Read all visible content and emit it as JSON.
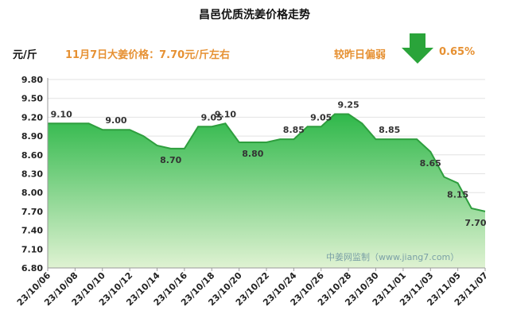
{
  "header": {
    "title": "昌邑优质洗姜价格走势",
    "unit": "元/斤",
    "price_text": "11月7日大姜价格：7.70元/斤左右",
    "change_text": "较昨日偏弱",
    "change_pct": "0.65%",
    "change_icon": "down-arrow-icon"
  },
  "watermark": "中姜网监制（www.jiang7.com）",
  "colors": {
    "line": "#2e9e3e",
    "fill_top": "#2fb84a",
    "fill_bottom": "#dff2d2",
    "accent": "#e69133",
    "arrow": "#2aa43a"
  },
  "chart_data": {
    "type": "area",
    "title": "昌邑优质洗姜价格走势",
    "ylabel": "元/斤",
    "ylim": [
      6.8,
      9.8
    ],
    "yticks": [
      "9.80",
      "9.50",
      "9.20",
      "8.90",
      "8.60",
      "8.30",
      "8.00",
      "7.70",
      "7.40",
      "7.10",
      "6.80"
    ],
    "x_tick_labels": [
      "23/10/06",
      "23/10/08",
      "23/10/10",
      "23/10/12",
      "23/10/14",
      "23/10/16",
      "23/10/18",
      "23/10/20",
      "23/10/22",
      "23/10/24",
      "23/10/26",
      "23/10/28",
      "23/10/30",
      "23/11/01",
      "23/11/03",
      "23/11/05",
      "23/11/07"
    ],
    "dates": [
      "23/10/06",
      "23/10/07",
      "23/10/08",
      "23/10/09",
      "23/10/10",
      "23/10/11",
      "23/10/12",
      "23/10/13",
      "23/10/14",
      "23/10/15",
      "23/10/16",
      "23/10/17",
      "23/10/18",
      "23/10/19",
      "23/10/20",
      "23/10/21",
      "23/10/22",
      "23/10/23",
      "23/10/24",
      "23/10/25",
      "23/10/26",
      "23/10/27",
      "23/10/28",
      "23/10/29",
      "23/10/30",
      "23/10/31",
      "23/11/01",
      "23/11/02",
      "23/11/03",
      "23/11/04",
      "23/11/05",
      "23/11/06",
      "23/11/07"
    ],
    "values": [
      9.1,
      9.1,
      9.1,
      9.1,
      9.0,
      9.0,
      9.0,
      8.9,
      8.75,
      8.7,
      8.7,
      9.05,
      9.05,
      9.1,
      8.8,
      8.8,
      8.8,
      8.85,
      8.85,
      9.05,
      9.05,
      9.25,
      9.25,
      9.1,
      8.85,
      8.85,
      8.85,
      8.85,
      8.65,
      8.25,
      8.15,
      7.75,
      7.7
    ],
    "data_labels": [
      {
        "date": "23/10/07",
        "text": "9.10"
      },
      {
        "date": "23/10/11",
        "text": "9.00"
      },
      {
        "date": "23/10/15",
        "text": "8.70"
      },
      {
        "date": "23/10/18",
        "text": "9.05"
      },
      {
        "date": "23/10/19",
        "text": "9.10"
      },
      {
        "date": "23/10/21",
        "text": "8.80"
      },
      {
        "date": "23/10/24",
        "text": "8.85"
      },
      {
        "date": "23/10/26",
        "text": "9.05"
      },
      {
        "date": "23/10/28",
        "text": "9.25"
      },
      {
        "date": "23/10/31",
        "text": "8.85"
      },
      {
        "date": "23/11/03",
        "text": "8.65"
      },
      {
        "date": "23/11/05",
        "text": "8.15"
      },
      {
        "date": "23/11/07",
        "text": "7.70"
      }
    ],
    "grid": true,
    "legend": "none"
  }
}
